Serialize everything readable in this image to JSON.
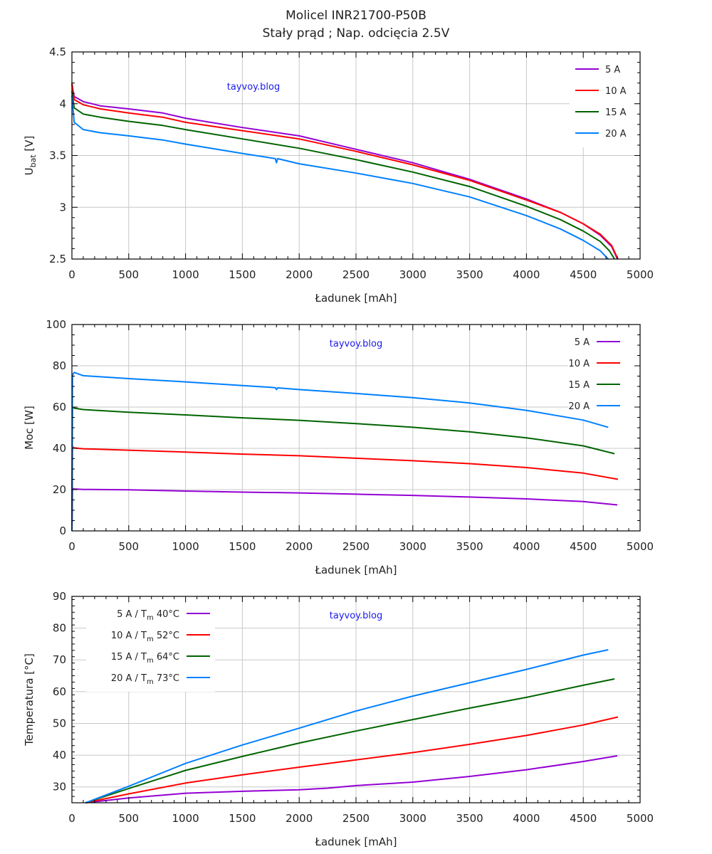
{
  "title_line1": "Molicel INR21700-P50B",
  "title_line2": "Stały prąd ; Nap. odcięcia 2.5V",
  "colors": {
    "5A": "#9400d3",
    "10A": "#ff0000",
    "15A": "#006400",
    "20A": "#0080ff",
    "grid": "#c8c8c8",
    "watermark": "#1a1aee"
  },
  "chart_data": [
    {
      "type": "line",
      "id": "voltage",
      "title": "",
      "xlabel": "Ładunek [mAh]",
      "ylabel": "U",
      "ylabel_sub": "bat",
      "ylabel_unit": " [V]",
      "xlim": [
        0,
        5000
      ],
      "ylim": [
        2.5,
        4.5
      ],
      "xticks": [
        0,
        500,
        1000,
        1500,
        2000,
        2500,
        3000,
        3500,
        4000,
        4500,
        5000
      ],
      "yticks": [
        2.5,
        3,
        3.5,
        4,
        4.5
      ],
      "ytick_labels": [
        "2.5",
        "3",
        "3.5",
        "4",
        "4.5"
      ],
      "grid": true,
      "watermark": "tayvoy.blog",
      "legend_position": "top-right",
      "legend_style": "line-left",
      "series": [
        {
          "name": "5 A",
          "color": "#9400d3",
          "x": [
            0,
            20,
            100,
            250,
            500,
            800,
            1000,
            1500,
            2000,
            2500,
            3000,
            3500,
            4000,
            4300,
            4500,
            4650,
            4750,
            4800
          ],
          "y": [
            4.18,
            4.07,
            4.02,
            3.98,
            3.95,
            3.91,
            3.86,
            3.77,
            3.69,
            3.56,
            3.43,
            3.27,
            3.08,
            2.95,
            2.84,
            2.73,
            2.62,
            2.5
          ]
        },
        {
          "name": "10 A",
          "color": "#ff0000",
          "x": [
            0,
            20,
            100,
            250,
            500,
            800,
            1000,
            1500,
            2000,
            2500,
            3000,
            3500,
            4000,
            4300,
            4500,
            4650,
            4750,
            4805
          ],
          "y": [
            4.2,
            4.04,
            3.99,
            3.95,
            3.91,
            3.87,
            3.82,
            3.74,
            3.66,
            3.54,
            3.41,
            3.26,
            3.07,
            2.95,
            2.84,
            2.74,
            2.63,
            2.5
          ]
        },
        {
          "name": "15 A",
          "color": "#006400",
          "x": [
            0,
            20,
            100,
            250,
            500,
            800,
            1000,
            1500,
            2000,
            2500,
            3000,
            3500,
            4000,
            4300,
            4500,
            4650,
            4730,
            4775
          ],
          "y": [
            4.12,
            3.96,
            3.9,
            3.87,
            3.83,
            3.79,
            3.75,
            3.66,
            3.57,
            3.46,
            3.34,
            3.2,
            3.01,
            2.88,
            2.77,
            2.67,
            2.58,
            2.5
          ]
        },
        {
          "name": "20 A",
          "color": "#0080ff",
          "x": [
            0,
            20,
            100,
            250,
            500,
            800,
            1000,
            1500,
            1790,
            1800,
            1810,
            2000,
            2500,
            3000,
            3500,
            4000,
            4300,
            4500,
            4650,
            4720
          ],
          "y": [
            4.08,
            3.82,
            3.75,
            3.72,
            3.69,
            3.65,
            3.61,
            3.52,
            3.47,
            3.43,
            3.47,
            3.42,
            3.33,
            3.23,
            3.1,
            2.92,
            2.79,
            2.68,
            2.58,
            2.5
          ]
        }
      ]
    },
    {
      "type": "line",
      "id": "power",
      "title": "",
      "xlabel": "Ładunek [mAh]",
      "ylabel": "Moc [W]",
      "xlim": [
        0,
        5000
      ],
      "ylim": [
        0,
        100
      ],
      "xticks": [
        0,
        500,
        1000,
        1500,
        2000,
        2500,
        3000,
        3500,
        4000,
        4500,
        5000
      ],
      "yticks": [
        0,
        20,
        40,
        60,
        80,
        100
      ],
      "ytick_labels": [
        "0",
        "20",
        "40",
        "60",
        "80",
        "100"
      ],
      "grid": true,
      "watermark": "tayvoy.blog",
      "legend_position": "top-right",
      "legend_style": "line-right",
      "series": [
        {
          "name": "5 A",
          "color": "#9400d3",
          "x": [
            0,
            5,
            20,
            100,
            500,
            1000,
            1500,
            2000,
            2500,
            3000,
            3500,
            4000,
            4500,
            4800
          ],
          "y": [
            0,
            20.5,
            20.3,
            20.1,
            19.9,
            19.3,
            18.8,
            18.4,
            17.8,
            17.2,
            16.4,
            15.5,
            14.2,
            12.6
          ]
        },
        {
          "name": "10 A",
          "color": "#ff0000",
          "x": [
            0,
            5,
            20,
            100,
            500,
            1000,
            1500,
            2000,
            2500,
            3000,
            3500,
            4000,
            4500,
            4805
          ],
          "y": [
            0,
            40.8,
            40.2,
            39.8,
            39.1,
            38.2,
            37.2,
            36.4,
            35.2,
            34.0,
            32.6,
            30.7,
            28.0,
            25.0
          ]
        },
        {
          "name": "15 A",
          "color": "#006400",
          "x": [
            0,
            5,
            20,
            100,
            500,
            1000,
            1500,
            2000,
            2500,
            3000,
            3500,
            4000,
            4500,
            4775
          ],
          "y": [
            0,
            59.8,
            59.5,
            58.8,
            57.5,
            56.2,
            54.8,
            53.6,
            52.0,
            50.2,
            48.0,
            45.1,
            41.2,
            37.4
          ]
        },
        {
          "name": "20 A",
          "color": "#0080ff",
          "x": [
            0,
            5,
            20,
            100,
            500,
            1000,
            1500,
            1790,
            1800,
            1810,
            2000,
            2500,
            3000,
            3500,
            4000,
            4500,
            4720
          ],
          "y": [
            0,
            75.5,
            76.8,
            75.2,
            73.8,
            72.2,
            70.4,
            69.4,
            68.5,
            69.3,
            68.5,
            66.6,
            64.6,
            62.0,
            58.4,
            53.7,
            50.2
          ]
        }
      ]
    },
    {
      "type": "line",
      "id": "temperature",
      "title": "",
      "xlabel": "Ładunek [mAh]",
      "ylabel": "Temperatura [°C]",
      "xlim": [
        0,
        5000
      ],
      "ylim": [
        25,
        90
      ],
      "xticks": [
        0,
        500,
        1000,
        1500,
        2000,
        2500,
        3000,
        3500,
        4000,
        4500,
        5000
      ],
      "yticks": [
        30,
        40,
        50,
        60,
        70,
        80,
        90
      ],
      "ytick_labels": [
        "30",
        "40",
        "50",
        "60",
        "70",
        "80",
        "90"
      ],
      "grid": true,
      "watermark": "tayvoy.blog",
      "legend_position": "top-left",
      "legend_style": "line-right",
      "series": [
        {
          "name": "5 A",
          "legend_sub": "m",
          "legend_rest": "40°C",
          "color": "#9400d3",
          "x": [
            120,
            500,
            1000,
            1500,
            2000,
            2250,
            2500,
            3000,
            3500,
            4000,
            4500,
            4800
          ],
          "y": [
            25,
            26.5,
            28.0,
            28.6,
            29.1,
            29.6,
            30.4,
            31.5,
            33.3,
            35.4,
            38.0,
            39.8
          ]
        },
        {
          "name": "10 A",
          "legend_sub": "m",
          "legend_rest": "52°C",
          "color": "#ff0000",
          "x": [
            120,
            500,
            1000,
            1500,
            2000,
            2500,
            3000,
            3500,
            4000,
            4500,
            4805
          ],
          "y": [
            25,
            27.8,
            31.2,
            33.8,
            36.2,
            38.5,
            40.8,
            43.4,
            46.2,
            49.5,
            52.0
          ]
        },
        {
          "name": "15 A",
          "legend_sub": "m",
          "legend_rest": "64°C",
          "color": "#006400",
          "x": [
            120,
            500,
            1000,
            1500,
            2000,
            2500,
            3000,
            3500,
            4000,
            4500,
            4775
          ],
          "y": [
            25,
            29.5,
            35.2,
            39.6,
            43.8,
            47.6,
            51.2,
            54.8,
            58.2,
            62.0,
            64.0
          ]
        },
        {
          "name": "20 A",
          "legend_sub": "m",
          "legend_rest": "73°C",
          "color": "#0080ff",
          "x": [
            120,
            500,
            1000,
            1500,
            2000,
            2500,
            3000,
            3500,
            4000,
            4500,
            4720
          ],
          "y": [
            25,
            30.2,
            37.4,
            43.2,
            48.5,
            53.9,
            58.6,
            62.8,
            67.0,
            71.5,
            73.2
          ]
        }
      ]
    }
  ]
}
